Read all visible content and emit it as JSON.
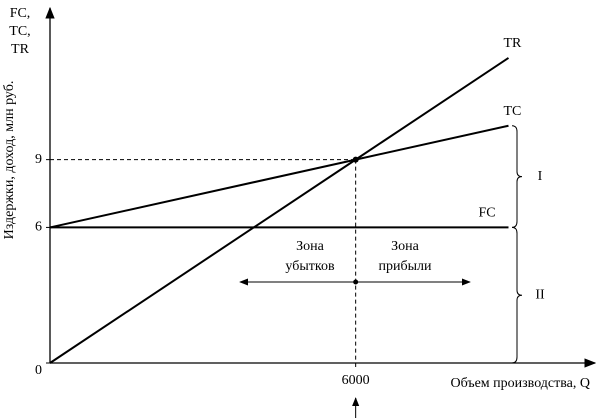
{
  "chart_data": {
    "type": "line",
    "y_title_lines": [
      "FC,",
      "TC,",
      "TR"
    ],
    "y_label": "Издержки, доход, млн руб.",
    "x_label": "Объем производства, Q",
    "x": [
      0,
      6000,
      9000
    ],
    "series": [
      {
        "name": "TR",
        "color": "#000000",
        "values": [
          0,
          9,
          13.5
        ]
      },
      {
        "name": "TC",
        "color": "#000000",
        "values": [
          6,
          9,
          10.5
        ]
      },
      {
        "name": "FC",
        "color": "#000000",
        "values": [
          6,
          6,
          6
        ]
      }
    ],
    "xlim": [
      0,
      10600
    ],
    "ylim": [
      0,
      15.4
    ],
    "xticks": [
      6000
    ],
    "yticks": [
      0,
      6,
      9
    ],
    "annotations": {
      "loss_zone": [
        "Зона",
        "убытков"
      ],
      "profit_zone": [
        "Зона",
        "прибыли"
      ],
      "brace_upper": "I",
      "brace_lower": "II"
    }
  }
}
